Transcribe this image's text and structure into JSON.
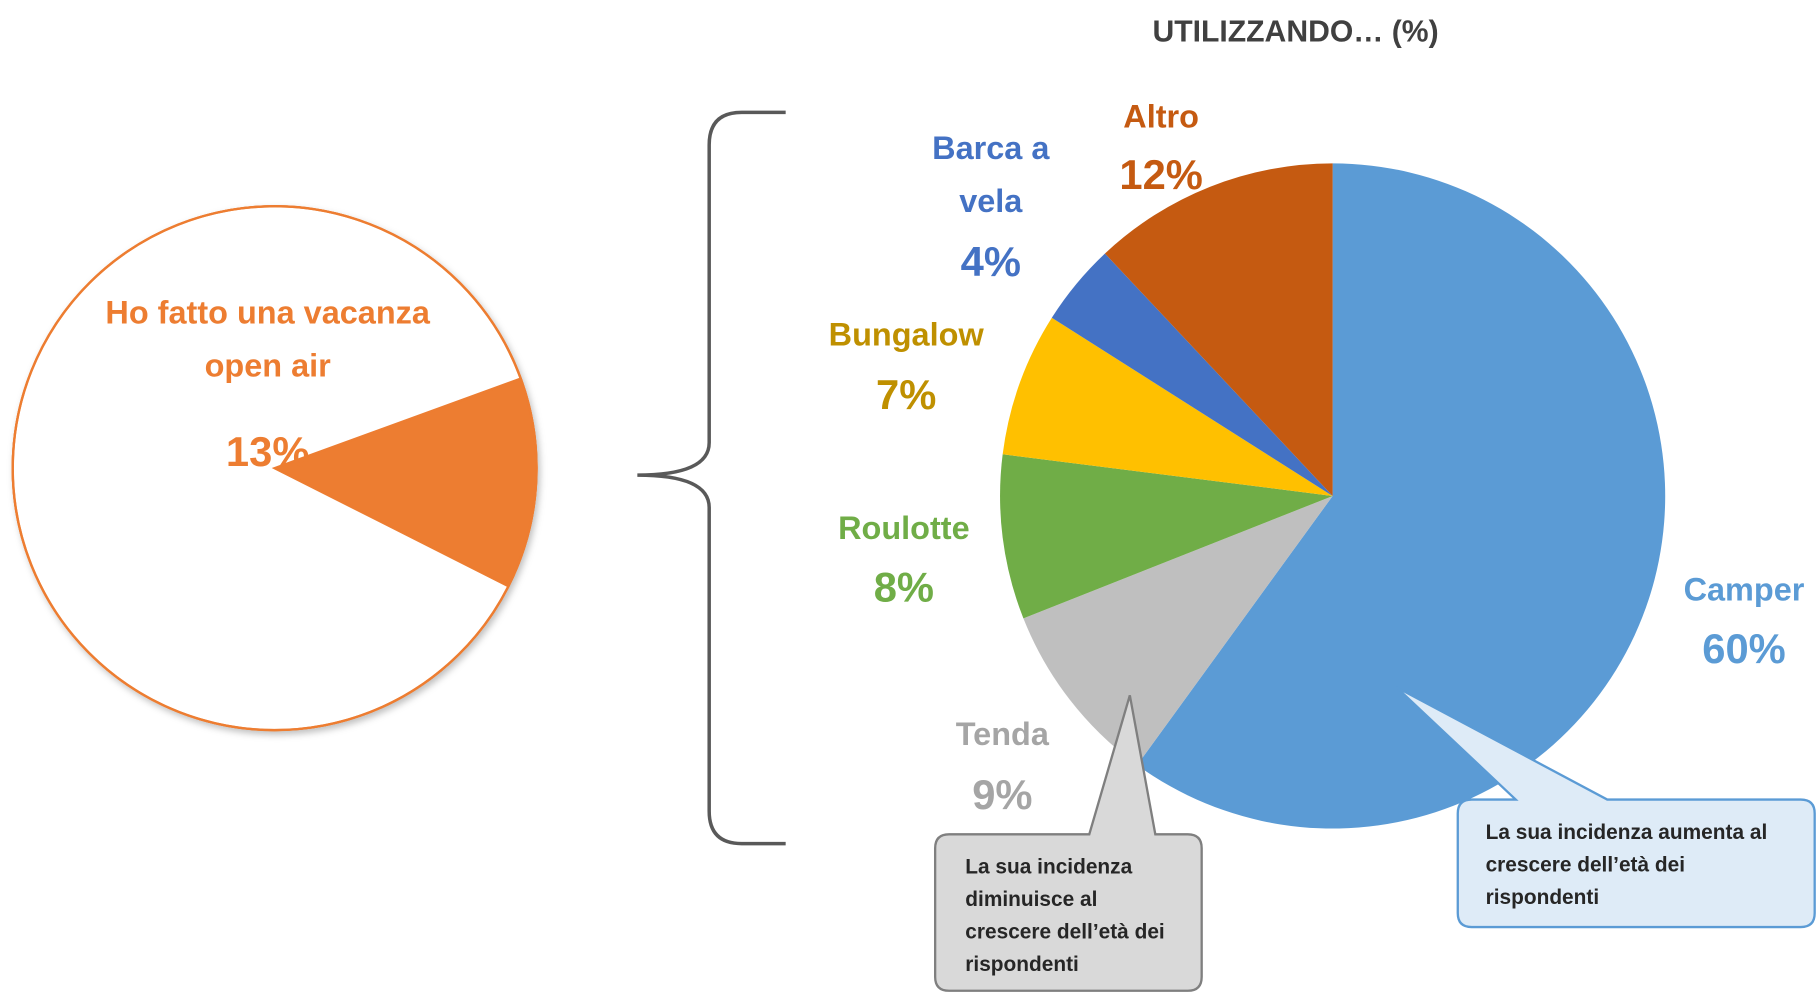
{
  "chart_data": [
    {
      "type": "pie",
      "categories": [
        "Ho fatto una vacanza open air",
        null
      ],
      "values": [
        13,
        87
      ],
      "value_labels": [
        "13%",
        null
      ],
      "colors": [
        "#ed7d31",
        "#ffffff"
      ],
      "label_colors": [
        "#ed7d31",
        null
      ],
      "outline_color": "#ed7d31"
    },
    {
      "type": "pie",
      "title": "UTILIZZANDO… (%)",
      "categories": [
        "Camper",
        "Tenda",
        "Roulotte",
        "Bungalow",
        "Barca a vela",
        "Altro"
      ],
      "values": [
        60,
        9,
        8,
        7,
        4,
        12
      ],
      "value_labels": [
        "60%",
        "9%",
        "8%",
        "7%",
        "4%",
        "12%"
      ],
      "colors": [
        "#5b9bd5",
        "#bfbfbf",
        "#70ad47",
        "#ffc000",
        "#4472c4",
        "#c55a11"
      ],
      "label_colors": [
        "#5b9bd5",
        "#a5a5a5",
        "#70ad47",
        "#bf9000",
        "#4472c4",
        "#c55a11"
      ],
      "annotations": [
        "La sua incidenza diminuisce al crescere dell’età dei rispondenti",
        "La sua incidenza aumenta al crescere dell’età dei rispondenti"
      ]
    }
  ]
}
